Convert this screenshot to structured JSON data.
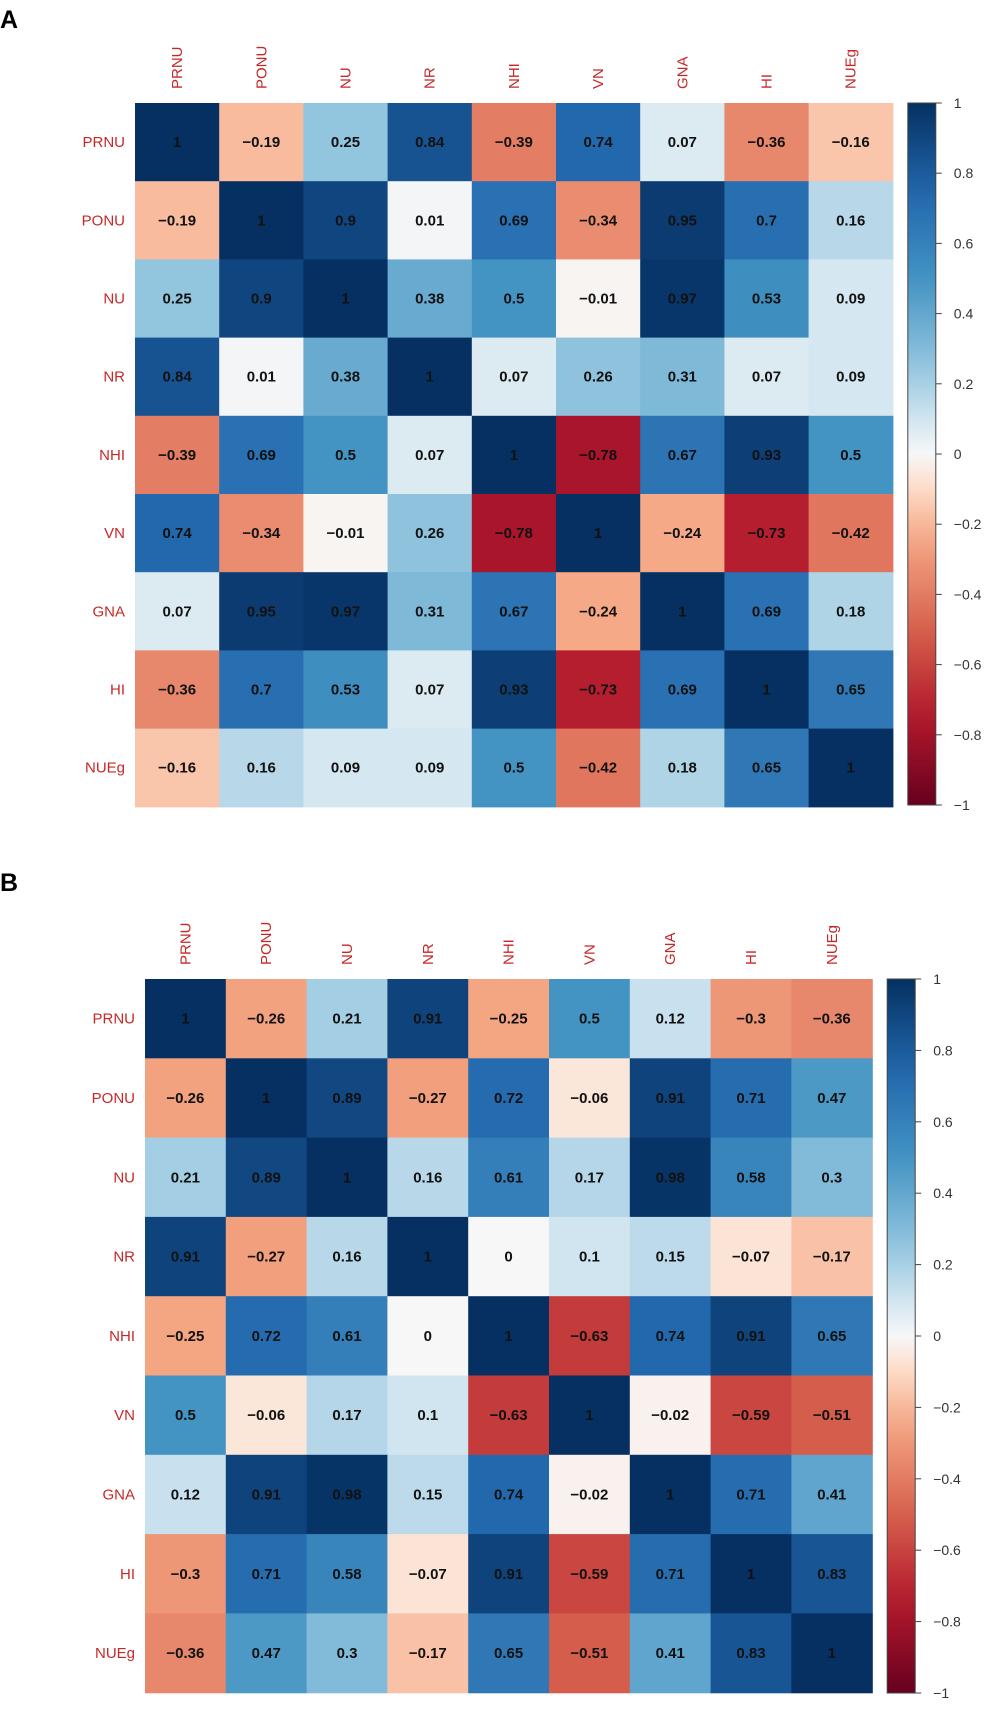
{
  "panels": {
    "a": {
      "label": "A"
    },
    "b": {
      "label": "B"
    }
  },
  "colors": {
    "label_text": "#c62828",
    "cell_text": "#111111",
    "negative_end": "#67001f",
    "neutral": "#f7f7f7",
    "positive_end": "#053061"
  },
  "chart_data": [
    {
      "type": "heatmap",
      "panel": "A",
      "title": "",
      "row_labels": [
        "PRNU",
        "PONU",
        "NU",
        "NR",
        "NHI",
        "VN",
        "GNA",
        "HI",
        "NUEg"
      ],
      "col_labels": [
        "PRNU",
        "PONU",
        "NU",
        "NR",
        "NHI",
        "VN",
        "GNA",
        "HI",
        "NUEg"
      ],
      "values": [
        [
          "1",
          "−0.19",
          "0.25",
          "0.84",
          "−0.39",
          "0.74",
          "0.07",
          "−0.36",
          "−0.16"
        ],
        [
          "−0.19",
          "1",
          "0.9",
          "0.01",
          "0.69",
          "−0.34",
          "0.95",
          "0.7",
          "0.16"
        ],
        [
          "0.25",
          "0.9",
          "1",
          "0.38",
          "0.5",
          "−0.01",
          "0.97",
          "0.53",
          "0.09"
        ],
        [
          "0.84",
          "0.01",
          "0.38",
          "1",
          "0.07",
          "0.26",
          "0.31",
          "0.07",
          "0.09"
        ],
        [
          "−0.39",
          "0.69",
          "0.5",
          "0.07",
          "1",
          "−0.78",
          "0.67",
          "0.93",
          "0.5"
        ],
        [
          "0.74",
          "−0.34",
          "−0.01",
          "0.26",
          "−0.78",
          "1",
          "−0.24",
          "−0.73",
          "−0.42"
        ],
        [
          "0.07",
          "0.95",
          "0.97",
          "0.31",
          "0.67",
          "−0.24",
          "1",
          "0.69",
          "0.18"
        ],
        [
          "−0.36",
          "0.7",
          "0.53",
          "0.07",
          "0.93",
          "−0.73",
          "0.69",
          "1",
          "0.65"
        ],
        [
          "−0.16",
          "0.16",
          "0.09",
          "0.09",
          "0.5",
          "−0.42",
          "0.18",
          "0.65",
          "1"
        ]
      ],
      "colorbar": {
        "range": [
          -1,
          1
        ],
        "ticks": [
          "1",
          "0.8",
          "0.6",
          "0.4",
          "0.2",
          "0",
          "−0.2",
          "−0.4",
          "−0.6",
          "−0.8",
          "−1"
        ]
      }
    },
    {
      "type": "heatmap",
      "panel": "B",
      "title": "",
      "row_labels": [
        "PRNU",
        "PONU",
        "NU",
        "NR",
        "NHI",
        "VN",
        "GNA",
        "HI",
        "NUEg"
      ],
      "col_labels": [
        "PRNU",
        "PONU",
        "NU",
        "NR",
        "NHI",
        "VN",
        "GNA",
        "HI",
        "NUEg"
      ],
      "values": [
        [
          "1",
          "−0.26",
          "0.21",
          "0.91",
          "−0.25",
          "0.5",
          "0.12",
          "−0.3",
          "−0.36"
        ],
        [
          "−0.26",
          "1",
          "0.89",
          "−0.27",
          "0.72",
          "−0.06",
          "0.91",
          "0.71",
          "0.47"
        ],
        [
          "0.21",
          "0.89",
          "1",
          "0.16",
          "0.61",
          "0.17",
          "0.98",
          "0.58",
          "0.3"
        ],
        [
          "0.91",
          "−0.27",
          "0.16",
          "1",
          "0",
          "0.1",
          "0.15",
          "−0.07",
          "−0.17"
        ],
        [
          "−0.25",
          "0.72",
          "0.61",
          "0",
          "1",
          "−0.63",
          "0.74",
          "0.91",
          "0.65"
        ],
        [
          "0.5",
          "−0.06",
          "0.17",
          "0.1",
          "−0.63",
          "1",
          "−0.02",
          "−0.59",
          "−0.51"
        ],
        [
          "0.12",
          "0.91",
          "0.98",
          "0.15",
          "0.74",
          "−0.02",
          "1",
          "0.71",
          "0.41"
        ],
        [
          "−0.3",
          "0.71",
          "0.58",
          "−0.07",
          "0.91",
          "−0.59",
          "0.71",
          "1",
          "0.83"
        ],
        [
          "−0.36",
          "0.47",
          "0.3",
          "−0.17",
          "0.65",
          "−0.51",
          "0.41",
          "0.83",
          "1"
        ]
      ],
      "colorbar": {
        "range": [
          -1,
          1
        ],
        "ticks": [
          "1",
          "0.8",
          "0.6",
          "0.4",
          "0.2",
          "0",
          "−0.2",
          "−0.4",
          "−0.6",
          "−0.8",
          "−1"
        ]
      }
    }
  ]
}
